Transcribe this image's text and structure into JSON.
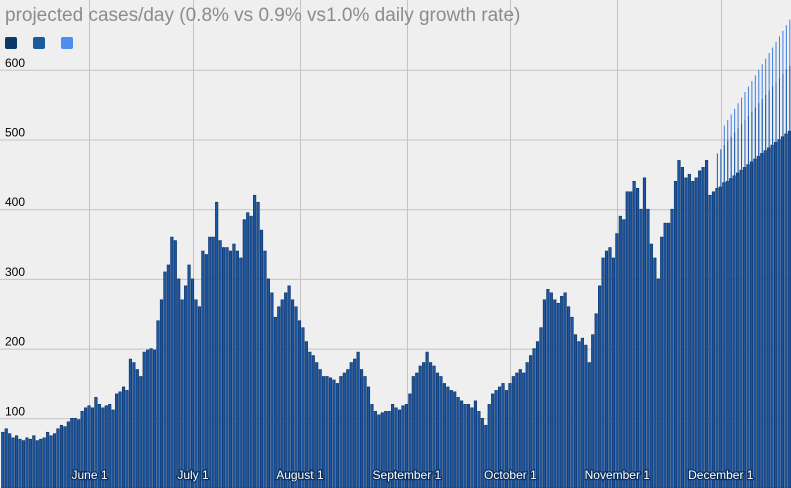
{
  "title": "projected cases/day (0.8% vs 0.9% vs1.0% daily growth rate)",
  "legend": [
    {
      "color": "#0b3a6a"
    },
    {
      "color": "#1c5a9e"
    },
    {
      "color": "#4a8ff0"
    }
  ],
  "chart_data": {
    "type": "bar",
    "title": "projected cases/day (0.8% vs 0.9% vs1.0% daily growth rate)",
    "xlabel": "",
    "ylabel": "",
    "ylim": [
      0,
      700
    ],
    "grid": true,
    "legend_position": "top-left",
    "x_ticks": [
      {
        "label": "June 1",
        "index": 25
      },
      {
        "label": "July 1",
        "index": 55
      },
      {
        "label": "August 1",
        "index": 86
      },
      {
        "label": "September 1",
        "index": 117
      },
      {
        "label": "October 1",
        "index": 147
      },
      {
        "label": "November 1",
        "index": 178
      },
      {
        "label": "December 1",
        "index": 208
      }
    ],
    "y_ticks": [
      100,
      200,
      300,
      400,
      500,
      600
    ],
    "series": [
      {
        "values": [
          80,
          85,
          78,
          72,
          75,
          70,
          68,
          72,
          70,
          75,
          68,
          70,
          72,
          80,
          75,
          78,
          85,
          90,
          88,
          95,
          100,
          100,
          98,
          110,
          115,
          118,
          115,
          130,
          120,
          115,
          118,
          120,
          112,
          135,
          138,
          145,
          140,
          185,
          180,
          170,
          160,
          195,
          198,
          200,
          198,
          240,
          270,
          310,
          320,
          360,
          355,
          300,
          270,
          290,
          320,
          300,
          270,
          260,
          340,
          335,
          360,
          360,
          410,
          355,
          345,
          345,
          340,
          350,
          340,
          330,
          385,
          395,
          390,
          420,
          410,
          370,
          340,
          300,
          280,
          245,
          260,
          270,
          280,
          290,
          270,
          260,
          240,
          230,
          210,
          195,
          190,
          180,
          170,
          160,
          160,
          158,
          155,
          150,
          160,
          165,
          170,
          180,
          185,
          195,
          170,
          160,
          145,
          120,
          110,
          105,
          108,
          110,
          110,
          120,
          115,
          112,
          118,
          120,
          135,
          160,
          165,
          175,
          180,
          195,
          180,
          175,
          165,
          160,
          150,
          145,
          140,
          138,
          130,
          125,
          120,
          120,
          115,
          125,
          110,
          100,
          90,
          120,
          135,
          140,
          145,
          150,
          140,
          150,
          160,
          165,
          170,
          165,
          180,
          190,
          200,
          210,
          230,
          270,
          285,
          280,
          270,
          265,
          275,
          280,
          260,
          245,
          220,
          210,
          215,
          205,
          180,
          220,
          250,
          290,
          330,
          340,
          345,
          330,
          365,
          390,
          385,
          425,
          425,
          440,
          430,
          400,
          445,
          400,
          350,
          330,
          300,
          360,
          380,
          380,
          400,
          440,
          470,
          460,
          445,
          450,
          440,
          445,
          455,
          460,
          470,
          420,
          425,
          430,
          432,
          438,
          440,
          444,
          448,
          452,
          456,
          460,
          464,
          468,
          472,
          476,
          480,
          484,
          488,
          492,
          496,
          500,
          504,
          508,
          512,
          516,
          520
        ]
      },
      {
        "values": [
          480,
          486,
          492,
          498,
          504,
          510,
          516,
          522,
          528,
          534,
          540,
          546,
          552,
          558,
          564,
          570,
          576,
          582,
          588,
          594,
          600,
          606,
          612,
          618
        ]
      },
      {
        "values": [
          520,
          528,
          536,
          544,
          552,
          560,
          568,
          576,
          584,
          592,
          600,
          608,
          616,
          624,
          632,
          640,
          648,
          656,
          664,
          672,
          680,
          688
        ]
      }
    ]
  }
}
